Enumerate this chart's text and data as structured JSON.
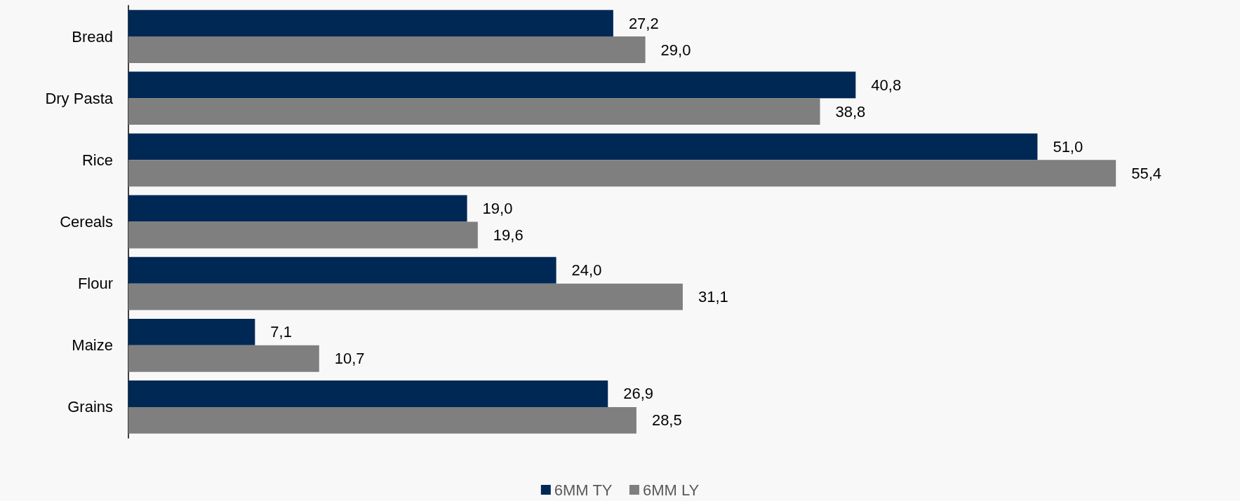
{
  "chart_data": {
    "type": "bar",
    "orientation": "horizontal",
    "categories": [
      "Bread",
      "Dry Pasta",
      "Rice",
      "Cereals",
      "Flour",
      "Maize",
      "Grains"
    ],
    "series": [
      {
        "name": "6MM TY",
        "color": "#002855",
        "values": [
          27.2,
          40.8,
          51.0,
          19.0,
          24.0,
          7.1,
          26.9
        ],
        "value_labels": [
          "27,2",
          "40,8",
          "51,0",
          "19,0",
          "24,0",
          "7,1",
          "26,9"
        ]
      },
      {
        "name": "6MM LY",
        "color": "#7f7f7f",
        "values": [
          29.0,
          38.8,
          55.4,
          19.6,
          31.1,
          10.7,
          28.5
        ],
        "value_labels": [
          "29,0",
          "38,8",
          "55,4",
          "19,6",
          "31,1",
          "10,7",
          "28,5"
        ]
      }
    ],
    "legend": "bottom",
    "grid": false
  }
}
